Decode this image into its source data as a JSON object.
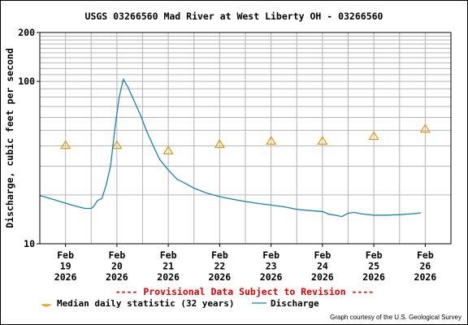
{
  "chart_data": {
    "type": "line",
    "title": "USGS 03266560 Mad River at West Liberty OH - 03266560",
    "ylabel": "Discharge, cubic feet per second",
    "yscale": "log",
    "ylim": [
      10,
      200
    ],
    "yticks": [
      {
        "value": 10,
        "label": "10"
      },
      {
        "value": 100,
        "label": "100"
      },
      {
        "value": 200,
        "label": "200"
      }
    ],
    "xlim": [
      "2026-02-18T12:00",
      "2026-02-26T12:00"
    ],
    "xticks": [
      {
        "x": "2026-02-19",
        "label": [
          "Feb",
          "19",
          "2026"
        ]
      },
      {
        "x": "2026-02-20",
        "label": [
          "Feb",
          "20",
          "2026"
        ]
      },
      {
        "x": "2026-02-21",
        "label": [
          "Feb",
          "21",
          "2026"
        ]
      },
      {
        "x": "2026-02-22",
        "label": [
          "Feb",
          "22",
          "2026"
        ]
      },
      {
        "x": "2026-02-23",
        "label": [
          "Feb",
          "23",
          "2026"
        ]
      },
      {
        "x": "2026-02-24",
        "label": [
          "Feb",
          "24",
          "2026"
        ]
      },
      {
        "x": "2026-02-25",
        "label": [
          "Feb",
          "25",
          "2026"
        ]
      },
      {
        "x": "2026-02-26",
        "label": [
          "Feb",
          "26",
          "2026"
        ]
      }
    ],
    "grid": true,
    "series": [
      {
        "name": "Median daily statistic (32 years)",
        "kind": "marker",
        "marker": "triangle",
        "color": "#e69500",
        "points": [
          {
            "x": "2026-02-19T00:00",
            "y": 40.5
          },
          {
            "x": "2026-02-20T00:00",
            "y": 40.5
          },
          {
            "x": "2026-02-21T00:00",
            "y": 37.5
          },
          {
            "x": "2026-02-22T00:00",
            "y": 41.0
          },
          {
            "x": "2026-02-23T00:00",
            "y": 43.0
          },
          {
            "x": "2026-02-24T00:00",
            "y": 43.0
          },
          {
            "x": "2026-02-25T00:00",
            "y": 46.0
          },
          {
            "x": "2026-02-26T00:00",
            "y": 51.0
          }
        ]
      },
      {
        "name": "Discharge",
        "kind": "line",
        "color": "#1a82b4",
        "points": [
          {
            "x": "2026-02-18T12:00",
            "y": 19.8
          },
          {
            "x": "2026-02-18T15:00",
            "y": 19.3
          },
          {
            "x": "2026-02-18T18:00",
            "y": 18.8
          },
          {
            "x": "2026-02-18T21:00",
            "y": 18.3
          },
          {
            "x": "2026-02-19T00:00",
            "y": 17.8
          },
          {
            "x": "2026-02-19T03:00",
            "y": 17.3
          },
          {
            "x": "2026-02-19T06:00",
            "y": 16.9
          },
          {
            "x": "2026-02-19T09:00",
            "y": 16.5
          },
          {
            "x": "2026-02-19T12:00",
            "y": 16.5
          },
          {
            "x": "2026-02-19T13:00",
            "y": 16.9
          },
          {
            "x": "2026-02-19T15:00",
            "y": 18.5
          },
          {
            "x": "2026-02-19T17:00",
            "y": 19.0
          },
          {
            "x": "2026-02-19T19:00",
            "y": 23.0
          },
          {
            "x": "2026-02-19T21:00",
            "y": 30.0
          },
          {
            "x": "2026-02-19T23:00",
            "y": 50.0
          },
          {
            "x": "2026-02-20T01:00",
            "y": 79.0
          },
          {
            "x": "2026-02-20T03:00",
            "y": 103.0
          },
          {
            "x": "2026-02-20T05:00",
            "y": 93.0
          },
          {
            "x": "2026-02-20T08:00",
            "y": 76.0
          },
          {
            "x": "2026-02-20T11:00",
            "y": 62.0
          },
          {
            "x": "2026-02-20T14:00",
            "y": 49.0
          },
          {
            "x": "2026-02-20T17:00",
            "y": 40.0
          },
          {
            "x": "2026-02-20T20:00",
            "y": 33.0
          },
          {
            "x": "2026-02-21T00:00",
            "y": 28.5
          },
          {
            "x": "2026-02-21T04:00",
            "y": 25.0
          },
          {
            "x": "2026-02-21T08:00",
            "y": 23.5
          },
          {
            "x": "2026-02-21T12:00",
            "y": 22.0
          },
          {
            "x": "2026-02-21T18:00",
            "y": 20.5
          },
          {
            "x": "2026-02-22T00:00",
            "y": 19.5
          },
          {
            "x": "2026-02-22T06:00",
            "y": 18.8
          },
          {
            "x": "2026-02-22T12:00",
            "y": 18.2
          },
          {
            "x": "2026-02-22T18:00",
            "y": 17.7
          },
          {
            "x": "2026-02-23T00:00",
            "y": 17.3
          },
          {
            "x": "2026-02-23T06:00",
            "y": 16.9
          },
          {
            "x": "2026-02-23T12:00",
            "y": 16.3
          },
          {
            "x": "2026-02-23T18:00",
            "y": 16.0
          },
          {
            "x": "2026-02-24T00:00",
            "y": 15.8
          },
          {
            "x": "2026-02-24T03:00",
            "y": 15.2
          },
          {
            "x": "2026-02-24T06:00",
            "y": 15.0
          },
          {
            "x": "2026-02-24T09:00",
            "y": 14.7
          },
          {
            "x": "2026-02-24T12:00",
            "y": 15.4
          },
          {
            "x": "2026-02-24T15:00",
            "y": 15.6
          },
          {
            "x": "2026-02-24T18:00",
            "y": 15.3
          },
          {
            "x": "2026-02-25T00:00",
            "y": 15.0
          },
          {
            "x": "2026-02-25T06:00",
            "y": 15.0
          },
          {
            "x": "2026-02-25T12:00",
            "y": 15.1
          },
          {
            "x": "2026-02-25T18:00",
            "y": 15.3
          },
          {
            "x": "2026-02-25T22:00",
            "y": 15.5
          }
        ]
      }
    ],
    "legend": {
      "placement": "bottom",
      "entries": [
        {
          "label": "Median daily statistic (32 years)",
          "symbol": "triangle",
          "color": "#e69500"
        },
        {
          "label": "Discharge",
          "symbol": "line",
          "color": "#1a82b4"
        }
      ]
    },
    "annotations": {
      "provisional": "---- Provisional Data Subject to Revision ----",
      "credit": "Graph courtesy of the U.S. Geological Survey"
    },
    "colors": {
      "provisional_text": "#e00000",
      "plot_frame": "#000000",
      "grid": "#b4b4b4"
    }
  }
}
